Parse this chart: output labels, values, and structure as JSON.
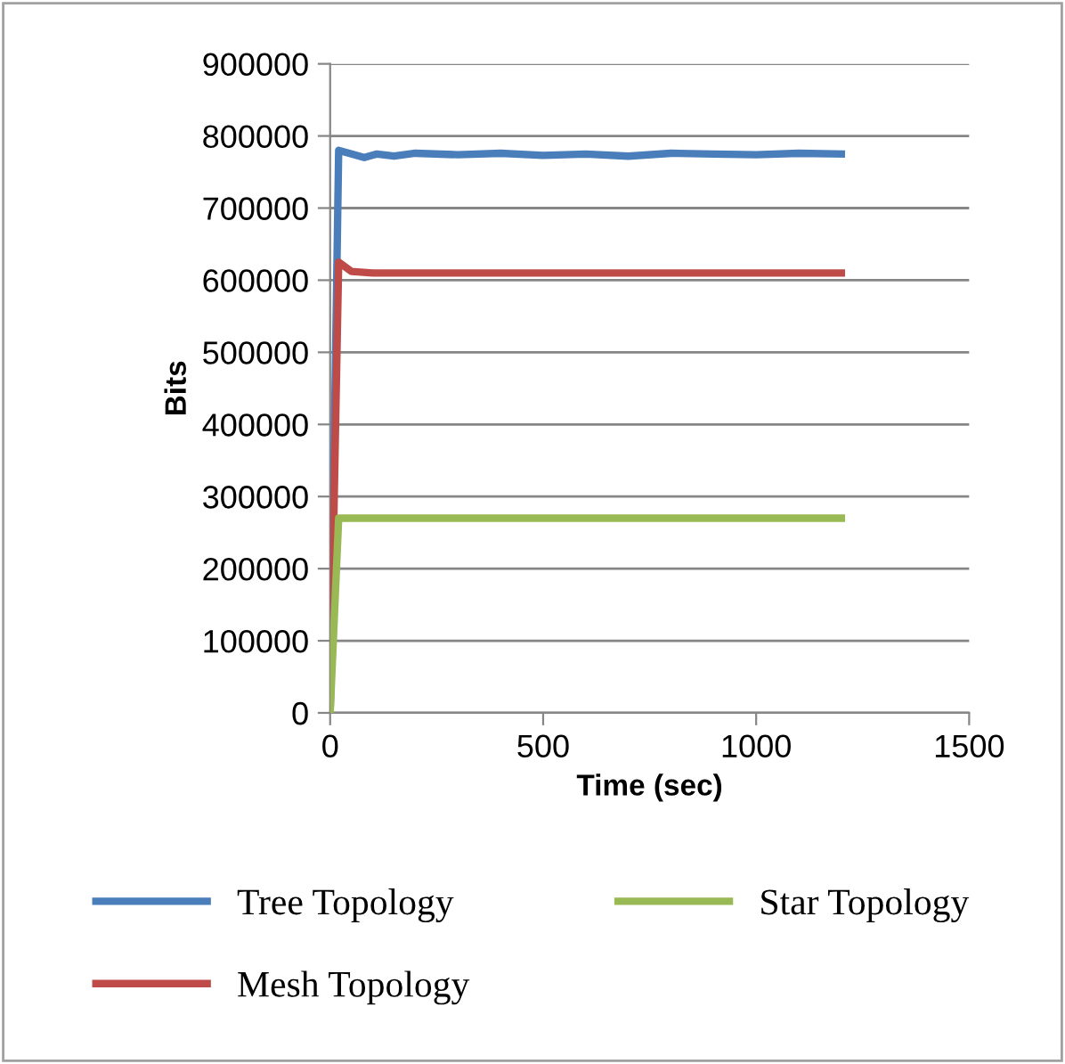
{
  "chart_data": {
    "type": "line",
    "xlabel": "Time (sec)",
    "ylabel": "Bits",
    "xlim": [
      0,
      1500
    ],
    "xticks": [
      0,
      500,
      1000,
      1500
    ],
    "ylim": [
      0,
      900000
    ],
    "yticks": [
      0,
      100000,
      200000,
      300000,
      400000,
      500000,
      600000,
      700000,
      800000,
      900000
    ],
    "grid": "y",
    "legend": "bottom",
    "marker": "none",
    "line_style": "solid",
    "series": [
      {
        "name": "Tree Topology",
        "color": "#4a7ebb",
        "x": [
          0,
          20,
          50,
          80,
          110,
          150,
          200,
          300,
          400,
          500,
          600,
          700,
          800,
          900,
          1000,
          1100,
          1200
        ],
        "values": [
          0,
          780000,
          775000,
          770000,
          775000,
          772000,
          776000,
          774000,
          776000,
          773000,
          775000,
          772000,
          776000,
          775000,
          774000,
          776000,
          775000
        ]
      },
      {
        "name": "Mesh Topology",
        "color": "#be4b48",
        "x": [
          0,
          20,
          50,
          100,
          1200
        ],
        "values": [
          0,
          625000,
          612000,
          610000,
          610000
        ]
      },
      {
        "name": "Star Topology",
        "color": "#98b954",
        "x": [
          0,
          20,
          1200
        ],
        "values": [
          0,
          270000,
          270000
        ]
      }
    ]
  }
}
